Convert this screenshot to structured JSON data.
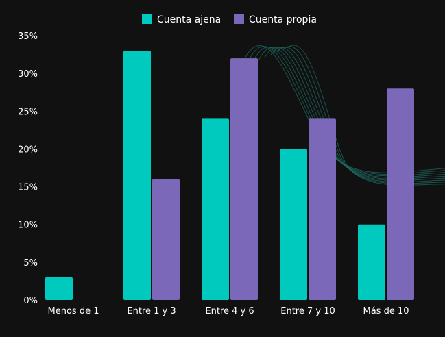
{
  "chart_data": {
    "type": "bar",
    "categories": [
      "Menos de 1",
      "Entre 1 y 3",
      "Entre 4 y 6",
      "Entre 7 y 10",
      "Más de 10"
    ],
    "series": [
      {
        "name": "Cuenta ajena",
        "color": "#00c9bd",
        "values": [
          3,
          33,
          24,
          20,
          10
        ]
      },
      {
        "name": "Cuenta propia",
        "color": "#7b68b8",
        "values": [
          0,
          16,
          32,
          24,
          28
        ]
      }
    ],
    "y_ticks": [
      "0%",
      "5%",
      "10%",
      "15%",
      "20%",
      "25%",
      "30%",
      "35%"
    ],
    "ylim": [
      0,
      35
    ],
    "grid": false,
    "legend_position": "top-center",
    "background": "#111111"
  }
}
